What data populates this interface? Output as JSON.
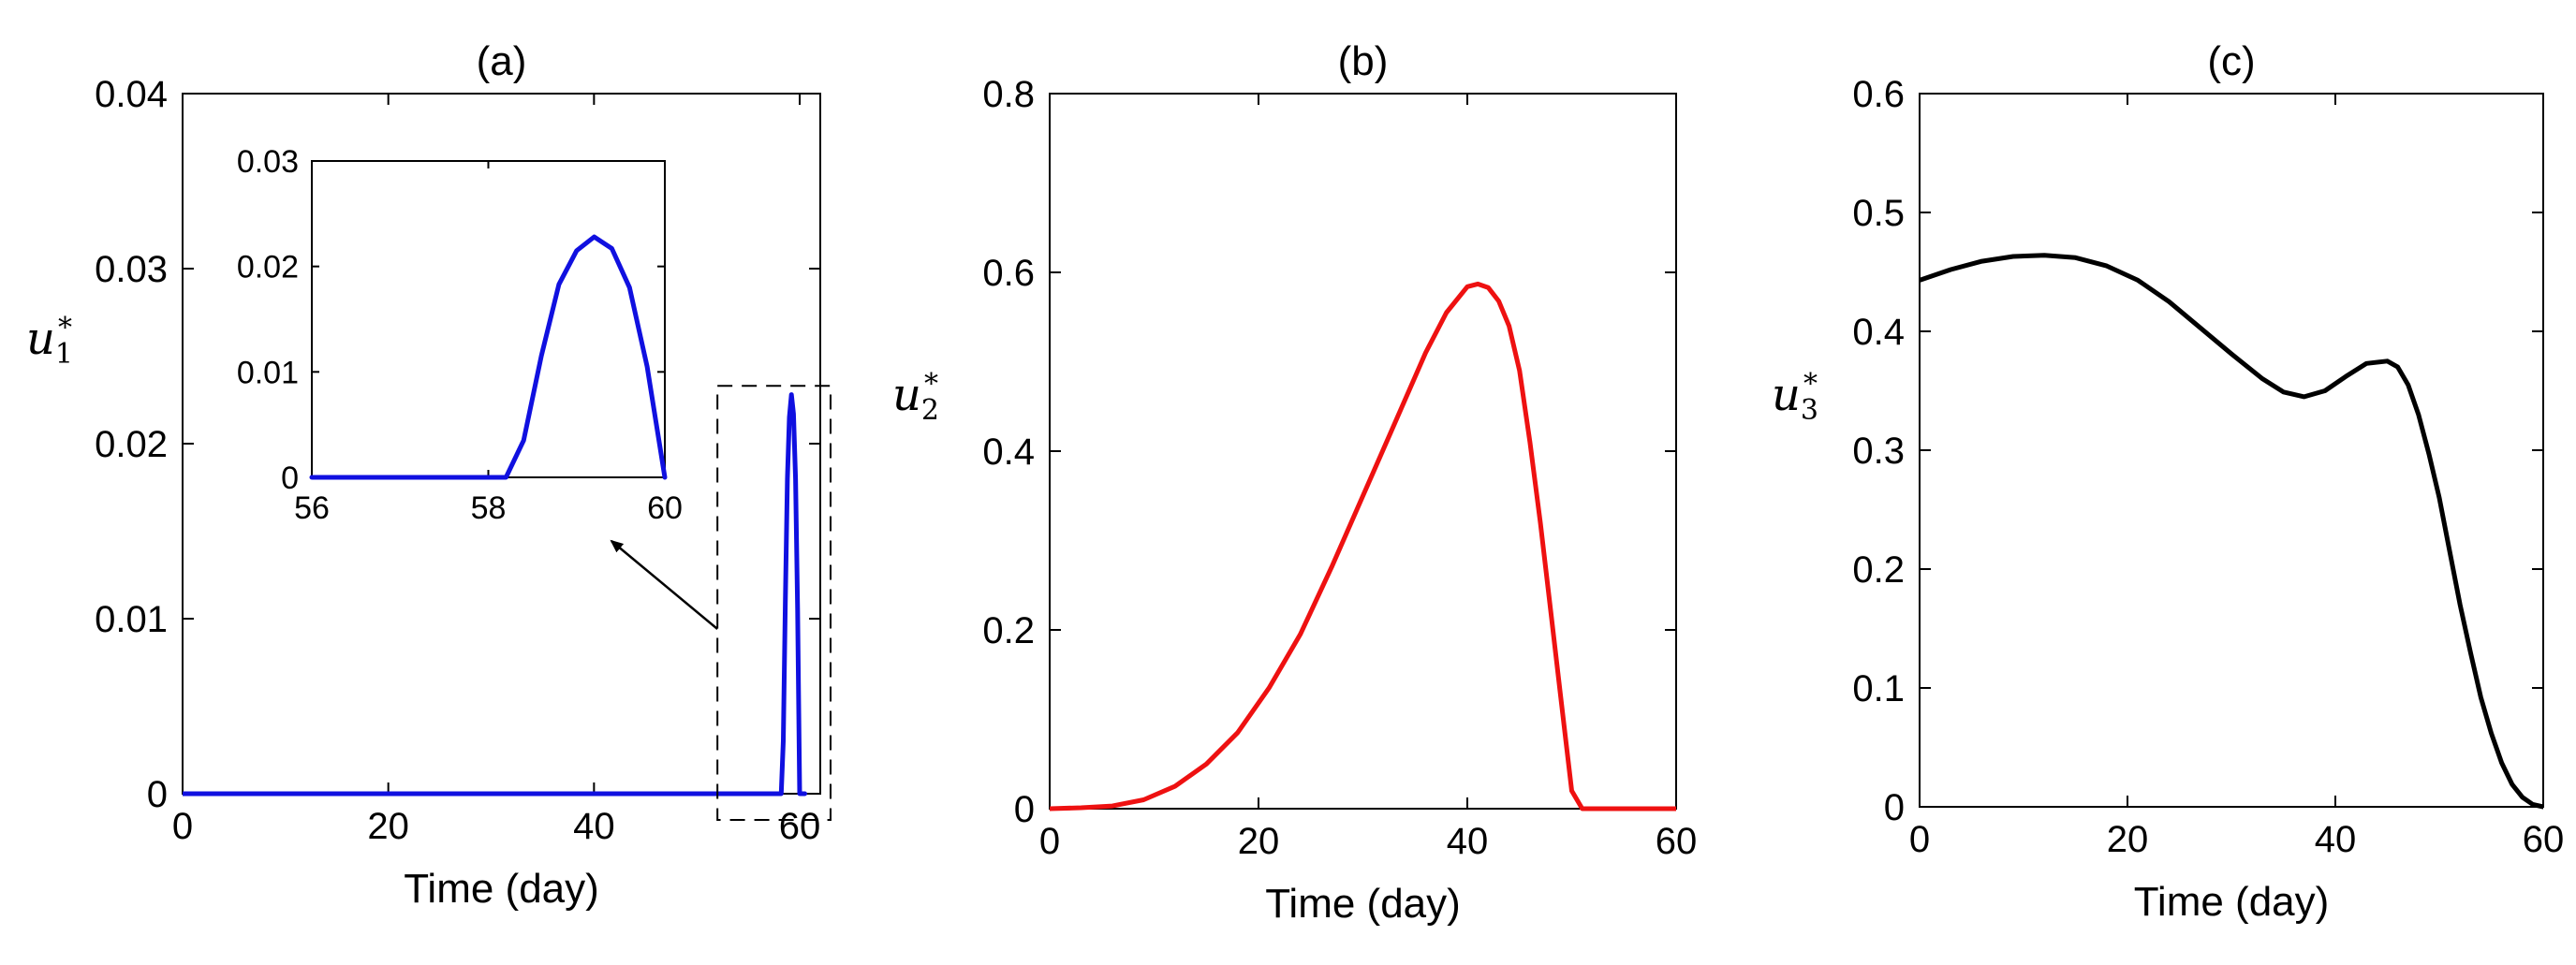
{
  "chart_data": [
    {
      "type": "line",
      "title": "(a)",
      "xlabel": "Time (day)",
      "ylabel": {
        "base": "u",
        "sub": "1",
        "sup": "*"
      },
      "xlim": [
        0,
        62
      ],
      "ylim": [
        0,
        0.04
      ],
      "xticks": [
        0,
        20,
        40,
        60
      ],
      "yticks": [
        0,
        0.01,
        0.02,
        0.03,
        0.04
      ],
      "xtick_labels": [
        "0",
        "20",
        "40",
        "60"
      ],
      "ytick_labels": [
        "0",
        "0.01",
        "0.02",
        "0.03",
        "0.04"
      ],
      "color": "#1010e0",
      "series": [
        {
          "name": "u1*",
          "x": [
            0,
            58.0,
            58.2,
            58.4,
            58.6,
            58.8,
            59.0,
            59.2,
            59.4,
            59.6,
            59.8,
            60.0,
            60.5
          ],
          "y": [
            0,
            0,
            0,
            0.003,
            0.011,
            0.018,
            0.0215,
            0.0228,
            0.0217,
            0.018,
            0.0105,
            0,
            0
          ]
        }
      ],
      "zoom_box": {
        "x": [
          52,
          63
        ],
        "y": [
          -0.0015,
          0.0233
        ]
      },
      "inset": {
        "xlim": [
          56,
          60
        ],
        "ylim": [
          0,
          0.03
        ],
        "xticks": [
          56,
          58,
          60
        ],
        "yticks": [
          0,
          0.01,
          0.02,
          0.03
        ],
        "xtick_labels": [
          "56",
          "58",
          "60"
        ],
        "ytick_labels": [
          "0",
          "0.01",
          "0.02",
          "0.03"
        ],
        "series": [
          {
            "name": "u1* (zoom)",
            "x": [
              56,
              58.0,
              58.2,
              58.4,
              58.6,
              58.8,
              59.0,
              59.2,
              59.4,
              59.6,
              59.8,
              60.0
            ],
            "y": [
              0,
              0,
              0,
              0.0035,
              0.0115,
              0.0183,
              0.0215,
              0.0228,
              0.0217,
              0.018,
              0.0105,
              0
            ]
          }
        ]
      }
    },
    {
      "type": "line",
      "title": "(b)",
      "xlabel": "Time (day)",
      "ylabel": {
        "base": "u",
        "sub": "2",
        "sup": "*"
      },
      "xlim": [
        0,
        60
      ],
      "ylim": [
        0,
        0.8
      ],
      "xticks": [
        0,
        20,
        40,
        60
      ],
      "yticks": [
        0,
        0.2,
        0.4,
        0.6,
        0.8
      ],
      "xtick_labels": [
        "0",
        "20",
        "40",
        "60"
      ],
      "ytick_labels": [
        "0",
        "0.2",
        "0.4",
        "0.6",
        "0.8"
      ],
      "color": "#ee1111",
      "series": [
        {
          "name": "u2*",
          "x": [
            0,
            3,
            6,
            9,
            12,
            15,
            18,
            21,
            24,
            27,
            30,
            33,
            36,
            38,
            40,
            41,
            42,
            43,
            44,
            45,
            46,
            47,
            48,
            49,
            50,
            51,
            52,
            55,
            60
          ],
          "y": [
            0,
            0.001,
            0.003,
            0.01,
            0.025,
            0.05,
            0.085,
            0.135,
            0.195,
            0.27,
            0.35,
            0.43,
            0.51,
            0.555,
            0.584,
            0.587,
            0.583,
            0.568,
            0.54,
            0.49,
            0.41,
            0.32,
            0.22,
            0.12,
            0.02,
            0,
            0,
            0,
            0
          ]
        }
      ]
    },
    {
      "type": "line",
      "title": "(c)",
      "xlabel": "Time (day)",
      "ylabel": {
        "base": "u",
        "sub": "3",
        "sup": "*"
      },
      "xlim": [
        0,
        60
      ],
      "ylim": [
        0,
        0.6
      ],
      "xticks": [
        0,
        20,
        40,
        60
      ],
      "yticks": [
        0,
        0.1,
        0.2,
        0.3,
        0.4,
        0.5,
        0.6
      ],
      "xtick_labels": [
        "0",
        "20",
        "40",
        "60"
      ],
      "ytick_labels": [
        "0",
        "0.1",
        "0.2",
        "0.3",
        "0.4",
        "0.5",
        "0.6"
      ],
      "color": "#000000",
      "series": [
        {
          "name": "u3*",
          "x": [
            0,
            3,
            6,
            9,
            12,
            15,
            18,
            21,
            24,
            27,
            30,
            33,
            35,
            37,
            39,
            41,
            43,
            45,
            46,
            47,
            48,
            49,
            50,
            51,
            52,
            53,
            54,
            55,
            56,
            57,
            58,
            59,
            60
          ],
          "y": [
            0.443,
            0.452,
            0.459,
            0.463,
            0.464,
            0.462,
            0.455,
            0.443,
            0.425,
            0.403,
            0.381,
            0.36,
            0.349,
            0.345,
            0.35,
            0.362,
            0.373,
            0.375,
            0.37,
            0.355,
            0.33,
            0.297,
            0.26,
            0.215,
            0.17,
            0.13,
            0.092,
            0.062,
            0.037,
            0.019,
            0.008,
            0.002,
            0
          ]
        }
      ]
    }
  ]
}
